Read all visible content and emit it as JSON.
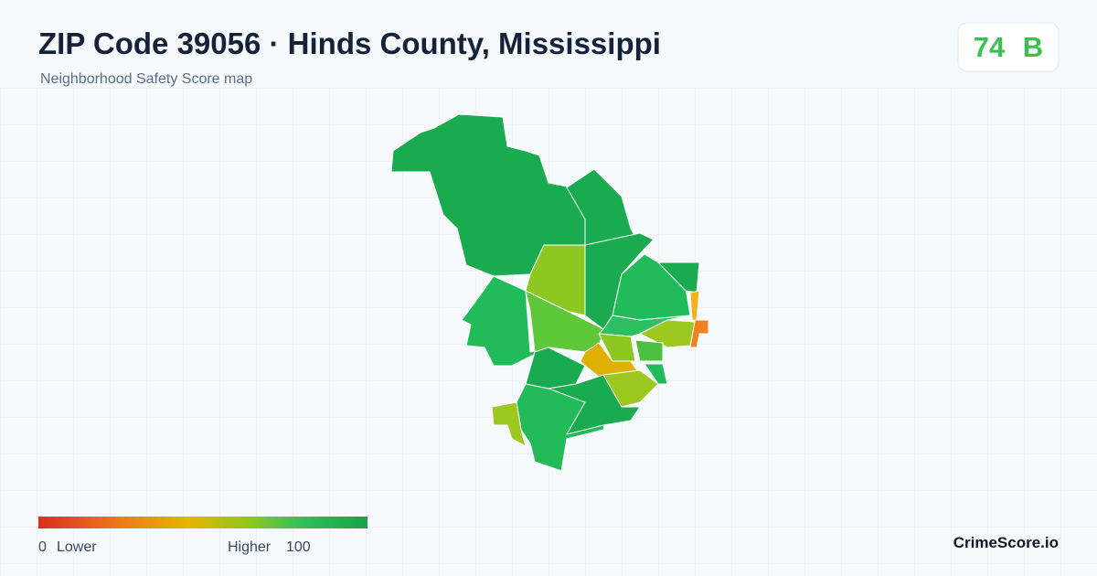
{
  "header": {
    "title": "ZIP Code 39056 · Hinds County, Mississippi",
    "subtitle": "Neighborhood Safety Score map"
  },
  "score": {
    "value": 74,
    "grade": "B"
  },
  "legend": {
    "min": 0,
    "min_label": "Lower",
    "max_label": "Higher",
    "max": 100
  },
  "brand": "CrimeScore.io"
}
